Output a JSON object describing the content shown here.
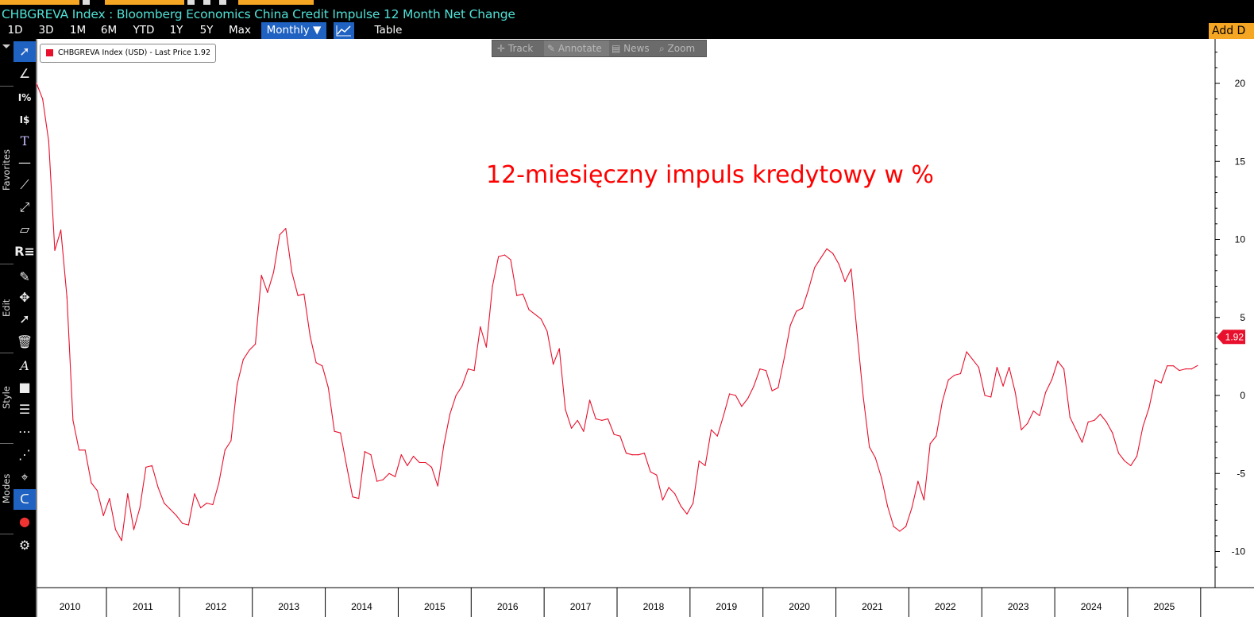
{
  "header": {
    "title": "CHBGREVA Index : Bloomberg Economics China Credit Impulse 12 Month Net Change"
  },
  "range_buttons": [
    "1D",
    "3D",
    "1M",
    "6M",
    "YTD",
    "1Y",
    "5Y",
    "Max"
  ],
  "periodicity": {
    "label": "Monthly ▼",
    "selected": true
  },
  "table_button": "Table",
  "add_button": "Add D",
  "chart_tools": [
    "Track",
    "Annotate",
    "News",
    "Zoom"
  ],
  "sidebar": {
    "sections": [
      "Favorites",
      "Edit",
      "Style",
      "Modes"
    ],
    "icons": [
      "cursor-icon",
      "draw-icon",
      "percent-icon",
      "dollar-icon",
      "text-icon",
      "line-icon",
      "trendline-icon",
      "ray-icon",
      "channel-icon",
      "regression-icon",
      "pencil-icon",
      "move-icon",
      "select-add-icon",
      "trash-icon",
      "font-icon",
      "color-box-icon",
      "line-thickness-icon",
      "line-style-icon",
      "dotted-icon",
      "crosshair-icon",
      "magnet-icon",
      "color-dots-icon",
      "settings-icon"
    ]
  },
  "legend": {
    "text": "CHBGREVA Index (USD) - Last Price  1.92",
    "color": "#e8102c"
  },
  "annotation": "12-miesięczny impuls kredytowy w %",
  "last_price_badge": "1.92",
  "colors": {
    "series": "#e8102c",
    "accent_blue": "#1f62c2",
    "orange": "#f5a623",
    "title_teal": "#4fe1d6"
  },
  "chart_data": {
    "type": "line",
    "title": "CHBGREVA Index : Bloomberg Economics China Credit Impulse 12 Month Net Change",
    "frequency": "monthly",
    "x_start": "2010-01",
    "x_end": "2025-11",
    "x_ticks": [
      "2010",
      "2011",
      "2012",
      "2013",
      "2014",
      "2015",
      "2016",
      "2017",
      "2018",
      "2019",
      "2020",
      "2021",
      "2022",
      "2023",
      "2024",
      "2025"
    ],
    "y_ticks": [
      -10,
      -5,
      0,
      5,
      10,
      15,
      20
    ],
    "ylim": [
      -11.5,
      23
    ],
    "grid": false,
    "legend_position": "top-left",
    "series": [
      {
        "name": "CHBGREVA Index (USD) - Last Price",
        "color": "#e8102c",
        "values": [
          20.0,
          19.0,
          16.3,
          9.3,
          10.6,
          6.3,
          -1.6,
          -3.5,
          -3.5,
          -5.6,
          -6.1,
          -7.7,
          -6.6,
          -8.6,
          -9.3,
          -6.3,
          -8.6,
          -7.2,
          -4.6,
          -4.5,
          -5.9,
          -6.9,
          -7.3,
          -7.7,
          -8.2,
          -8.3,
          -6.3,
          -7.2,
          -6.9,
          -7.0,
          -5.6,
          -3.5,
          -2.9,
          0.7,
          2.3,
          2.9,
          3.3,
          7.7,
          6.6,
          7.9,
          10.3,
          10.7,
          7.9,
          6.4,
          6.5,
          3.8,
          2.1,
          1.9,
          0.5,
          -2.3,
          -2.4,
          -4.5,
          -6.5,
          -6.6,
          -3.6,
          -3.8,
          -5.5,
          -5.4,
          -5.0,
          -5.2,
          -3.8,
          -4.5,
          -3.9,
          -4.3,
          -4.3,
          -4.6,
          -5.8,
          -3.2,
          -1.2,
          0.0,
          0.6,
          1.7,
          1.6,
          4.4,
          3.1,
          7.0,
          8.9,
          9.0,
          8.7,
          6.4,
          6.5,
          5.5,
          5.2,
          4.9,
          4.1,
          2.0,
          3.0,
          -0.9,
          -2.1,
          -1.6,
          -2.3,
          -0.3,
          -1.5,
          -1.6,
          -1.5,
          -2.5,
          -2.6,
          -3.7,
          -3.8,
          -3.8,
          -3.7,
          -4.9,
          -5.1,
          -6.7,
          -5.9,
          -6.3,
          -7.1,
          -7.6,
          -6.9,
          -4.2,
          -4.5,
          -2.2,
          -2.6,
          -1.3,
          0.1,
          0.0,
          -0.7,
          -0.2,
          0.6,
          1.7,
          1.6,
          0.3,
          0.5,
          2.4,
          4.5,
          5.4,
          5.6,
          6.8,
          8.2,
          8.8,
          9.4,
          9.1,
          8.4,
          7.3,
          8.1,
          3.9,
          -0.1,
          -3.3,
          -4.0,
          -5.3,
          -7.1,
          -8.4,
          -8.7,
          -8.4,
          -7.2,
          -5.5,
          -6.7,
          -3.1,
          -2.6,
          -0.4,
          1.0,
          1.3,
          1.4,
          2.8,
          2.3,
          1.8,
          0.0,
          -0.1,
          1.8,
          0.6,
          1.8,
          0.2,
          -2.2,
          -1.8,
          -1.0,
          -1.3,
          0.2,
          1.0,
          2.2,
          1.7,
          -1.4,
          -2.2,
          -3.0,
          -1.7,
          -1.6,
          -1.2,
          -1.7,
          -2.4,
          -3.7,
          -4.2,
          -4.5,
          -3.9,
          -2.0,
          -0.8,
          1.0,
          0.8,
          1.9,
          1.9,
          1.6,
          1.7,
          1.7,
          1.92
        ]
      }
    ]
  }
}
